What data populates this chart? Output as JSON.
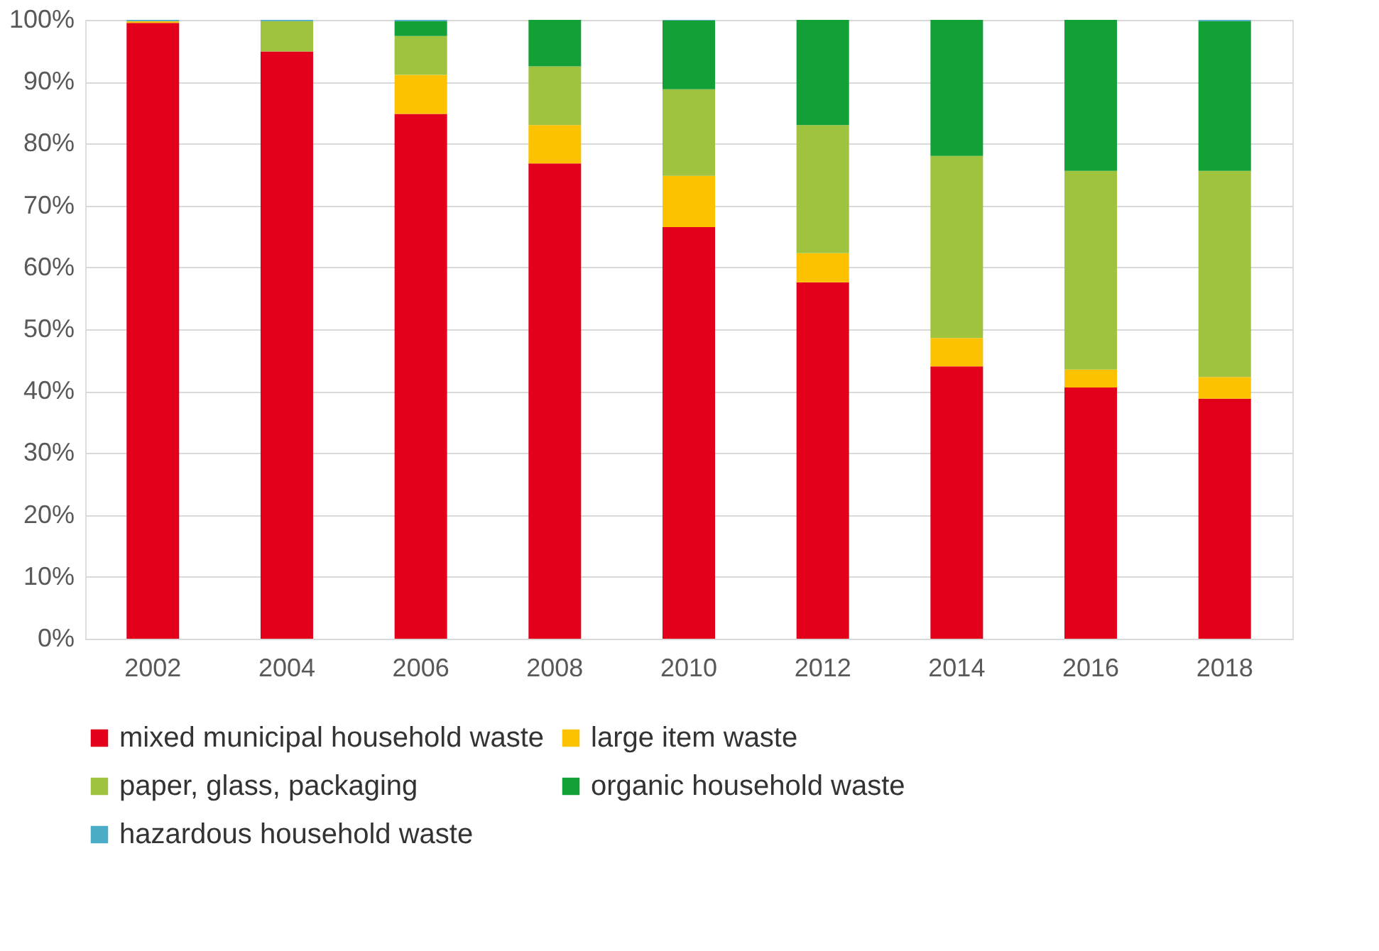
{
  "chart_data": {
    "type": "bar",
    "stacked": true,
    "categories": [
      "2002",
      "2004",
      "2006",
      "2008",
      "2010",
      "2012",
      "2014",
      "2016",
      "2018"
    ],
    "series": [
      {
        "name": "mixed municipal household waste",
        "color": "#e2001a",
        "values": [
          99.5,
          94.9,
          84.8,
          76.8,
          66.5,
          57.6,
          44.0,
          40.6,
          38.8
        ]
      },
      {
        "name": "large item waste",
        "color": "#fcc200",
        "values": [
          0.3,
          0,
          6.3,
          6.2,
          8.3,
          4.7,
          4.6,
          2.9,
          3.5
        ]
      },
      {
        "name": "paper, glass, packaging",
        "color": "#9fc33f",
        "values": [
          0,
          4.9,
          6.3,
          9.5,
          14.0,
          20.7,
          29.4,
          32.1,
          33.3
        ]
      },
      {
        "name": "organic household waste",
        "color": "#13a036",
        "values": [
          0,
          0,
          2.4,
          7.5,
          11.1,
          17.0,
          22.0,
          24.4,
          24.2
        ]
      },
      {
        "name": "hazardous household waste",
        "color": "#4bacc6",
        "values": [
          0.2,
          0.2,
          0.2,
          0,
          0.1,
          0,
          0,
          0,
          0.2
        ]
      }
    ],
    "ylim": [
      0,
      100
    ],
    "yticks": [
      {
        "value": 0,
        "label": "0%"
      },
      {
        "value": 10,
        "label": "10%"
      },
      {
        "value": 20,
        "label": "20%"
      },
      {
        "value": 30,
        "label": "30%"
      },
      {
        "value": 40,
        "label": "40%"
      },
      {
        "value": 50,
        "label": "50%"
      },
      {
        "value": 60,
        "label": "60%"
      },
      {
        "value": 70,
        "label": "70%"
      },
      {
        "value": 80,
        "label": "80%"
      },
      {
        "value": 90,
        "label": "90%"
      },
      {
        "value": 100,
        "label": "100%"
      }
    ],
    "grid": "y",
    "legend": "bottom"
  }
}
